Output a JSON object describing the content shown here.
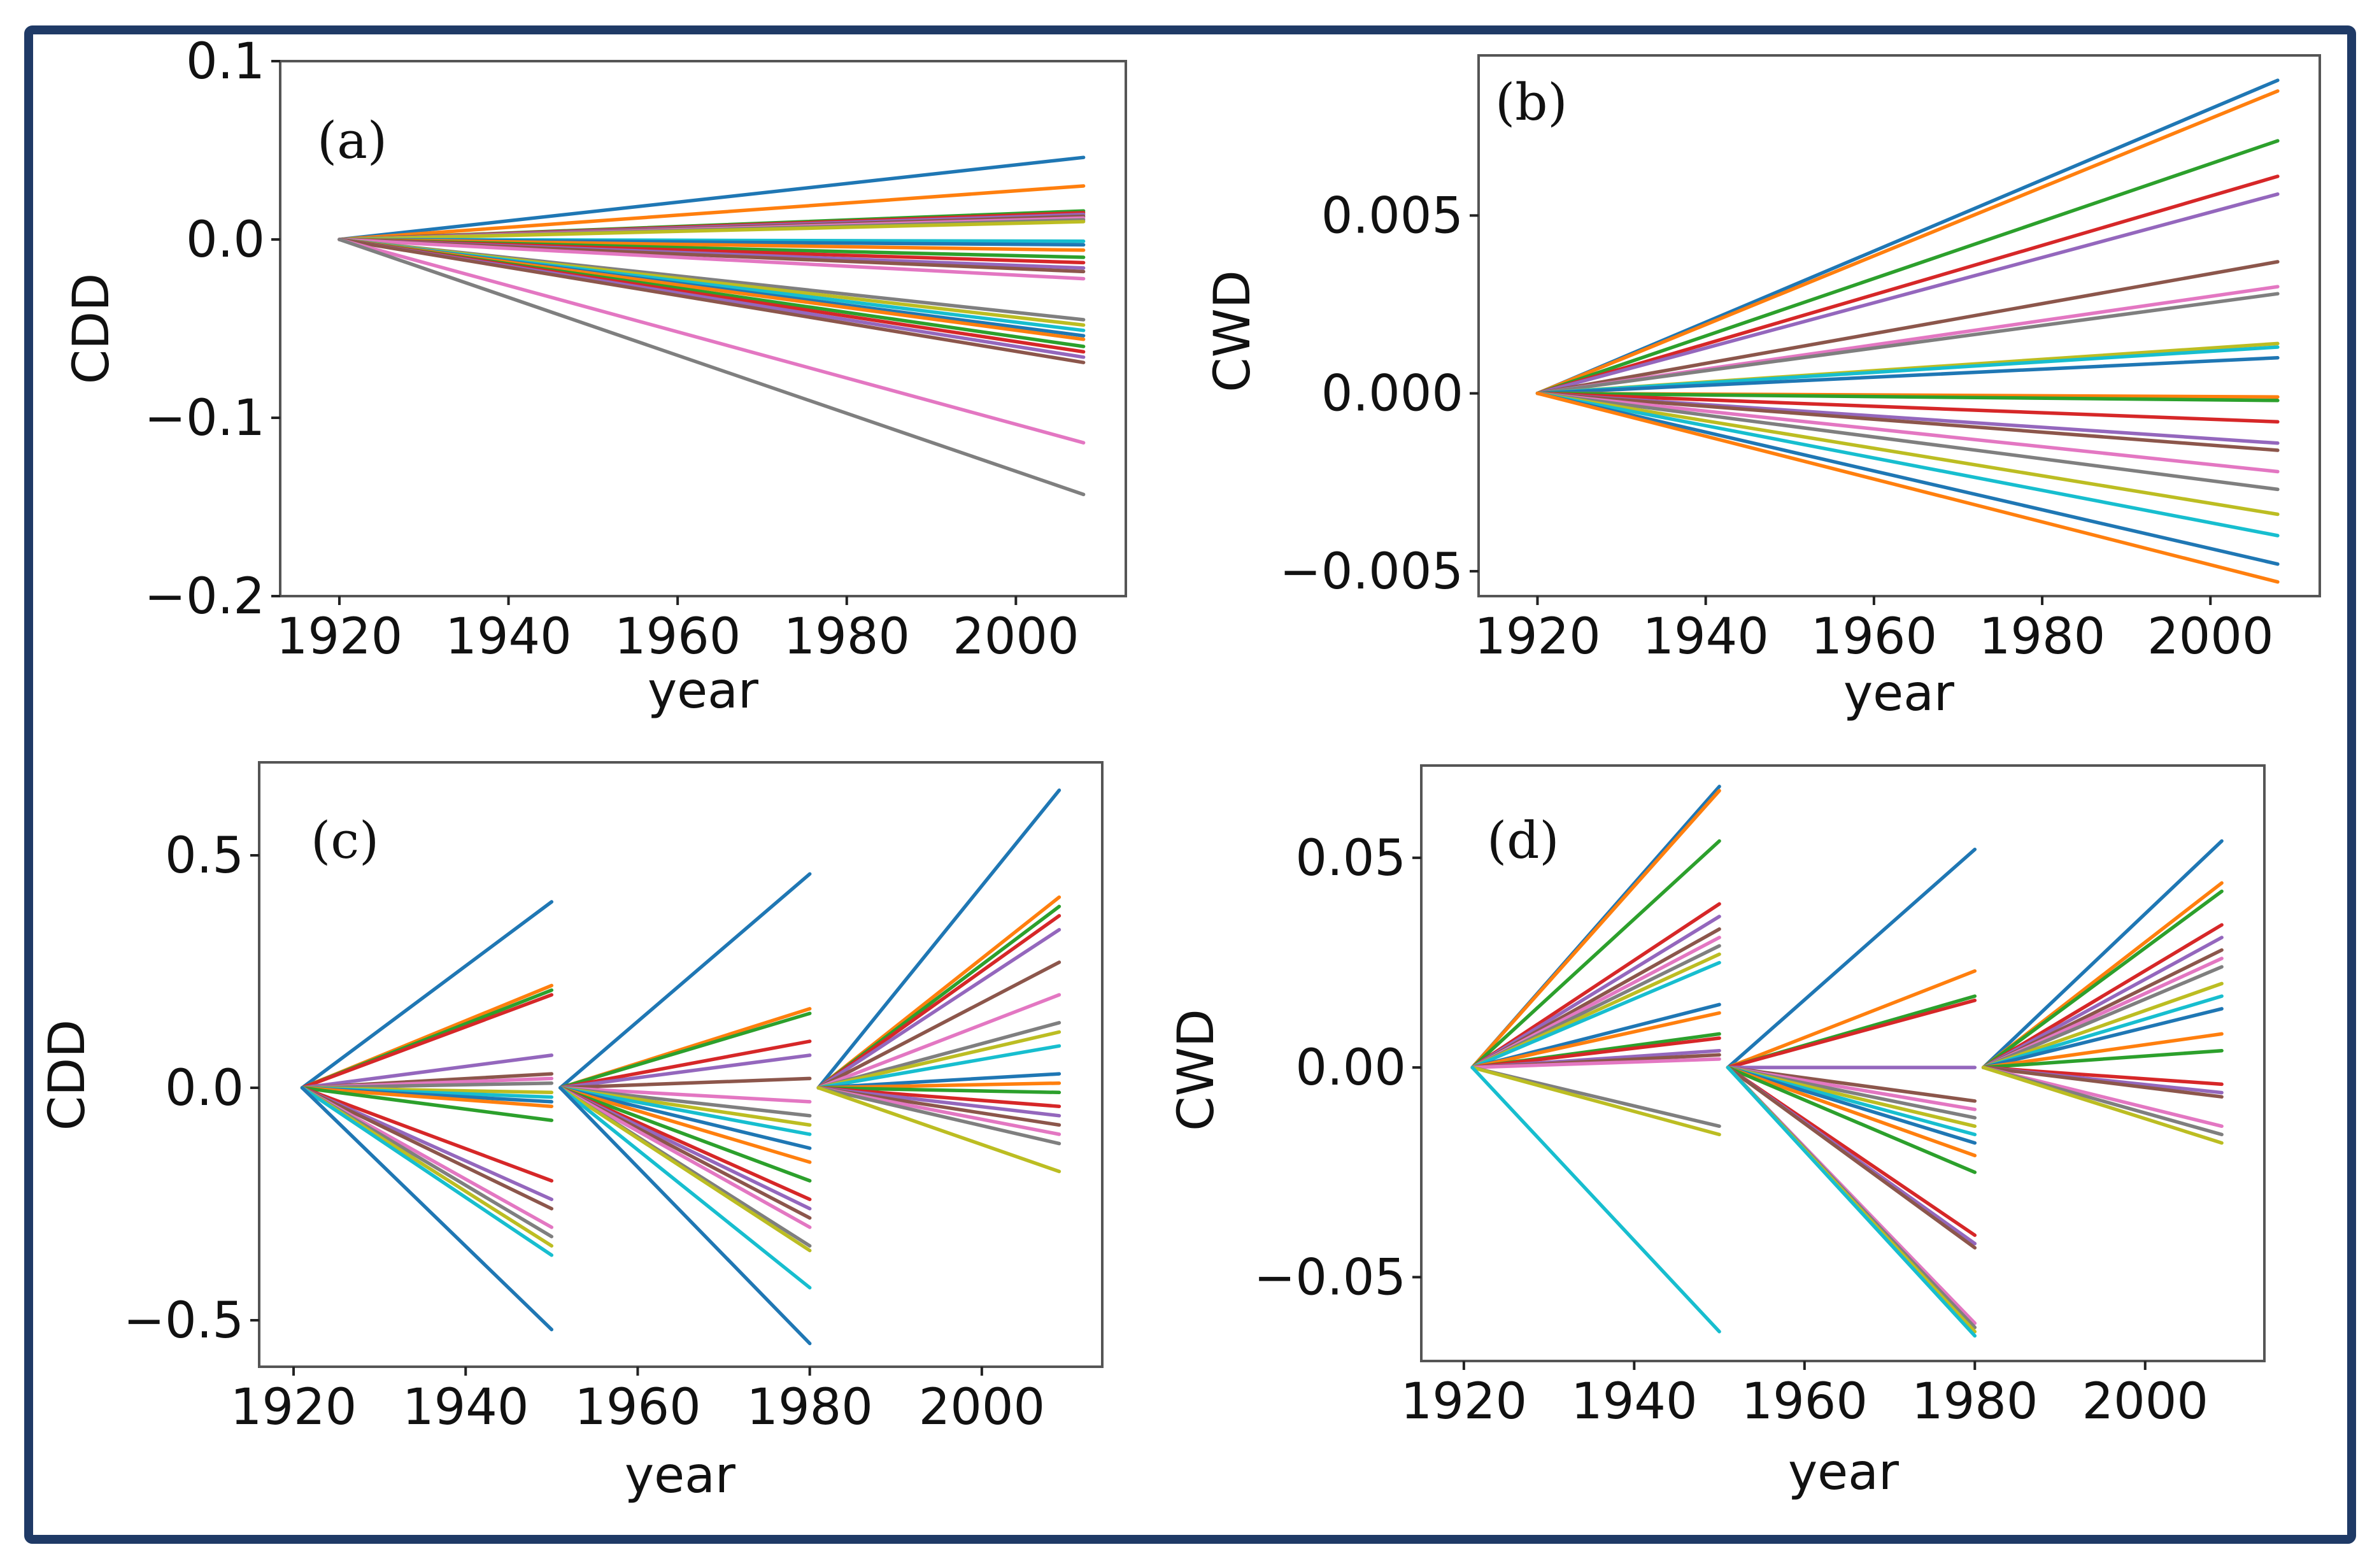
{
  "figure": {
    "frame_color": "#1f3a66"
  },
  "palette": [
    "#1f77b4",
    "#ff7f0e",
    "#2ca02c",
    "#d62728",
    "#9467bd",
    "#8c564b",
    "#e377c2",
    "#7f7f7f",
    "#bcbd22",
    "#17becf"
  ],
  "chart_data": [
    {
      "id": "a",
      "type": "line",
      "panel_label": "(a)",
      "xlabel": "year",
      "ylabel": "CDD",
      "xlim": [
        1913,
        2013
      ],
      "ylim": [
        -0.2,
        0.1
      ],
      "xticks": [
        1920,
        1940,
        1960,
        1980,
        2000
      ],
      "xtick_labels": [
        "1920",
        "1940",
        "1960",
        "1980",
        "2000"
      ],
      "yticks": [
        0.1,
        0.0,
        -0.1,
        -0.2
      ],
      "ytick_labels": [
        "0.1",
        "0.0",
        "−0.1",
        "−0.2"
      ],
      "segments": [
        [
          1920,
          2008
        ]
      ],
      "series_end_values": [
        [
          0.046,
          0.03,
          0.016,
          0.015,
          0.014,
          0.013,
          0.012,
          0.011,
          0.01,
          -0.001,
          -0.003,
          -0.006,
          -0.01,
          -0.013,
          -0.016,
          -0.018,
          -0.022,
          -0.045,
          -0.048,
          -0.051,
          -0.054,
          -0.056,
          -0.06,
          -0.063,
          -0.066,
          -0.069,
          -0.114,
          -0.143
        ]
      ]
    },
    {
      "id": "b",
      "type": "line",
      "panel_label": "(b)",
      "xlabel": "year",
      "ylabel": "CWD",
      "xlim": [
        1913,
        2013
      ],
      "ylim": [
        -0.0057,
        0.0095
      ],
      "xticks": [
        1920,
        1940,
        1960,
        1980,
        2000
      ],
      "xtick_labels": [
        "1920",
        "1940",
        "1960",
        "1980",
        "2000"
      ],
      "yticks": [
        0.005,
        0.0,
        -0.005
      ],
      "ytick_labels": [
        "0.005",
        "0.000",
        "−0.005"
      ],
      "segments": [
        [
          1920,
          2008
        ]
      ],
      "series_end_values": [
        [
          0.0088,
          0.0085,
          0.0071,
          0.0061,
          0.0056,
          0.0037,
          0.003,
          0.0028,
          0.0014,
          0.0013,
          0.001,
          -0.0001,
          -0.0002,
          -0.0008,
          -0.0014,
          -0.0016,
          -0.0022,
          -0.0027,
          -0.0034,
          -0.004,
          -0.0048,
          -0.0053
        ]
      ]
    },
    {
      "id": "c",
      "type": "line",
      "panel_label": "(c)",
      "xlabel": "year",
      "ylabel": "CDD",
      "xlim": [
        1916,
        2014
      ],
      "ylim": [
        -0.6,
        0.7
      ],
      "xticks": [
        1920,
        1940,
        1960,
        1980,
        2000
      ],
      "xtick_labels": [
        "1920",
        "1940",
        "1960",
        "1980",
        "2000"
      ],
      "yticks": [
        0.5,
        0.0,
        -0.5
      ],
      "ytick_labels": [
        "0.5",
        "0.0",
        "−0.5"
      ],
      "segments": [
        [
          1921,
          1950
        ],
        [
          1951,
          1980
        ],
        [
          1981,
          2009
        ]
      ],
      "series_end_values": [
        [
          0.4,
          0.22,
          0.21,
          0.2,
          0.07,
          0.03,
          0.02,
          0.01,
          -0.01,
          -0.02,
          -0.03,
          -0.04,
          -0.07,
          -0.2,
          -0.24,
          -0.26,
          -0.3,
          -0.32,
          -0.34,
          -0.36,
          -0.52
        ],
        [
          0.46,
          0.17,
          0.16,
          0.1,
          0.07,
          0.02,
          -0.03,
          -0.06,
          -0.08,
          -0.1,
          -0.13,
          -0.16,
          -0.2,
          -0.24,
          -0.26,
          -0.28,
          -0.3,
          -0.34,
          -0.35,
          -0.43,
          -0.55
        ],
        [
          0.64,
          0.41,
          0.39,
          0.37,
          0.34,
          0.27,
          0.2,
          0.14,
          0.12,
          0.09,
          0.03,
          0.01,
          -0.01,
          -0.04,
          -0.06,
          -0.08,
          -0.1,
          -0.12,
          -0.18
        ]
      ]
    },
    {
      "id": "d",
      "type": "line",
      "panel_label": "(d)",
      "xlabel": "year",
      "ylabel": "CWD",
      "xlim": [
        1915,
        2014
      ],
      "ylim": [
        -0.07,
        0.072
      ],
      "xticks": [
        1920,
        1940,
        1960,
        1980,
        2000
      ],
      "xtick_labels": [
        "1920",
        "1940",
        "1960",
        "1980",
        "2000"
      ],
      "yticks": [
        0.05,
        0.0,
        -0.05
      ],
      "ytick_labels": [
        "0.05",
        "0.00",
        "−0.05"
      ],
      "segments": [
        [
          1921,
          1950
        ],
        [
          1951,
          1980
        ],
        [
          1981,
          2009
        ]
      ],
      "series_end_values": [
        [
          0.067,
          0.066,
          0.054,
          0.039,
          0.036,
          0.033,
          0.031,
          0.029,
          0.027,
          0.025,
          0.015,
          0.013,
          0.008,
          0.007,
          0.004,
          0.003,
          0.002,
          -0.014,
          -0.016,
          -0.063
        ],
        [
          0.052,
          0.023,
          0.017,
          0.016,
          0.0,
          -0.008,
          -0.01,
          -0.012,
          -0.014,
          -0.016,
          -0.018,
          -0.021,
          -0.025,
          -0.04,
          -0.042,
          -0.043,
          -0.061,
          -0.062,
          -0.063,
          -0.064
        ],
        [
          0.054,
          0.044,
          0.042,
          0.034,
          0.031,
          0.028,
          0.026,
          0.024,
          0.02,
          0.017,
          0.014,
          0.008,
          0.004,
          -0.004,
          -0.006,
          -0.007,
          -0.014,
          -0.016,
          -0.018
        ]
      ]
    }
  ]
}
